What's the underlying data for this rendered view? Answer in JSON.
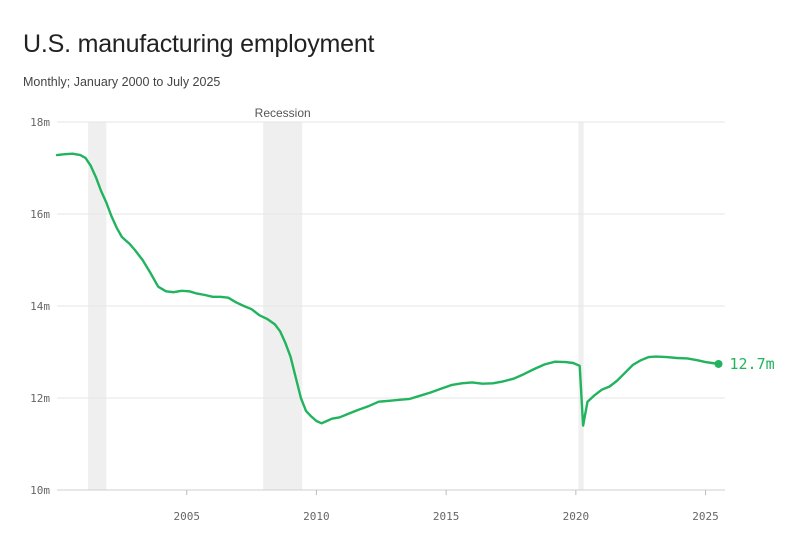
{
  "header": {
    "title": "U.S. manufacturing employment",
    "subtitle": "Monthly; January 2000 to July 2025"
  },
  "chart_data": {
    "type": "line",
    "title": "U.S. manufacturing employment",
    "subtitle": "Monthly; January 2000 to July 2025",
    "xlabel": "",
    "ylabel": "",
    "xlim": [
      2000.0,
      2025.75
    ],
    "ylim": [
      10,
      18
    ],
    "x_ticks": [
      {
        "value": 2005,
        "label": "2005"
      },
      {
        "value": 2010,
        "label": "2010"
      },
      {
        "value": 2015,
        "label": "2015"
      },
      {
        "value": 2020,
        "label": "2020"
      },
      {
        "value": 2025,
        "label": "2025"
      }
    ],
    "y_ticks": [
      {
        "value": 10,
        "label": "10m"
      },
      {
        "value": 12,
        "label": "12m"
      },
      {
        "value": 14,
        "label": "14m"
      },
      {
        "value": 16,
        "label": "16m"
      },
      {
        "value": 18,
        "label": "18m"
      }
    ],
    "grid": true,
    "line_color": "#22b35e",
    "recession_color": "#efefef",
    "recessions": [
      {
        "start": 2001.2,
        "end": 2001.9,
        "label": ""
      },
      {
        "start": 2007.95,
        "end": 2009.45,
        "label": "Recession"
      },
      {
        "start": 2020.1,
        "end": 2020.3,
        "label": ""
      }
    ],
    "end_label": "12.7m",
    "series": [
      {
        "values": [
          [
            2000.0,
            17.28
          ],
          [
            2000.3,
            17.3
          ],
          [
            2000.6,
            17.31
          ],
          [
            2000.9,
            17.28
          ],
          [
            2001.1,
            17.22
          ],
          [
            2001.3,
            17.05
          ],
          [
            2001.5,
            16.8
          ],
          [
            2001.7,
            16.5
          ],
          [
            2001.9,
            16.25
          ],
          [
            2002.1,
            15.95
          ],
          [
            2002.3,
            15.7
          ],
          [
            2002.5,
            15.5
          ],
          [
            2002.8,
            15.35
          ],
          [
            2003.0,
            15.22
          ],
          [
            2003.3,
            15.0
          ],
          [
            2003.6,
            14.72
          ],
          [
            2003.9,
            14.42
          ],
          [
            2004.2,
            14.32
          ],
          [
            2004.5,
            14.3
          ],
          [
            2004.8,
            14.33
          ],
          [
            2005.1,
            14.32
          ],
          [
            2005.4,
            14.27
          ],
          [
            2005.7,
            14.24
          ],
          [
            2006.0,
            14.2
          ],
          [
            2006.3,
            14.2
          ],
          [
            2006.6,
            14.18
          ],
          [
            2006.9,
            14.08
          ],
          [
            2007.2,
            14.0
          ],
          [
            2007.5,
            13.93
          ],
          [
            2007.8,
            13.8
          ],
          [
            2008.1,
            13.72
          ],
          [
            2008.4,
            13.6
          ],
          [
            2008.6,
            13.45
          ],
          [
            2008.8,
            13.2
          ],
          [
            2009.0,
            12.9
          ],
          [
            2009.2,
            12.45
          ],
          [
            2009.4,
            12.0
          ],
          [
            2009.6,
            11.72
          ],
          [
            2009.8,
            11.6
          ],
          [
            2010.0,
            11.5
          ],
          [
            2010.2,
            11.45
          ],
          [
            2010.4,
            11.5
          ],
          [
            2010.6,
            11.55
          ],
          [
            2010.9,
            11.58
          ],
          [
            2011.2,
            11.65
          ],
          [
            2011.6,
            11.74
          ],
          [
            2012.0,
            11.82
          ],
          [
            2012.4,
            11.92
          ],
          [
            2012.8,
            11.94
          ],
          [
            2013.2,
            11.96
          ],
          [
            2013.6,
            11.98
          ],
          [
            2014.0,
            12.05
          ],
          [
            2014.4,
            12.12
          ],
          [
            2014.8,
            12.2
          ],
          [
            2015.2,
            12.28
          ],
          [
            2015.6,
            12.32
          ],
          [
            2016.0,
            12.34
          ],
          [
            2016.4,
            12.31
          ],
          [
            2016.8,
            12.32
          ],
          [
            2017.2,
            12.36
          ],
          [
            2017.6,
            12.42
          ],
          [
            2018.0,
            12.52
          ],
          [
            2018.4,
            12.63
          ],
          [
            2018.8,
            12.73
          ],
          [
            2019.2,
            12.79
          ],
          [
            2019.6,
            12.78
          ],
          [
            2019.9,
            12.76
          ],
          [
            2020.15,
            12.7
          ],
          [
            2020.28,
            11.4
          ],
          [
            2020.45,
            11.92
          ],
          [
            2020.7,
            12.05
          ],
          [
            2021.0,
            12.18
          ],
          [
            2021.3,
            12.25
          ],
          [
            2021.6,
            12.38
          ],
          [
            2021.9,
            12.55
          ],
          [
            2022.2,
            12.72
          ],
          [
            2022.5,
            12.82
          ],
          [
            2022.8,
            12.89
          ],
          [
            2023.1,
            12.9
          ],
          [
            2023.5,
            12.89
          ],
          [
            2023.9,
            12.87
          ],
          [
            2024.3,
            12.86
          ],
          [
            2024.7,
            12.82
          ],
          [
            2025.0,
            12.78
          ],
          [
            2025.25,
            12.76
          ],
          [
            2025.5,
            12.74
          ]
        ]
      }
    ]
  }
}
